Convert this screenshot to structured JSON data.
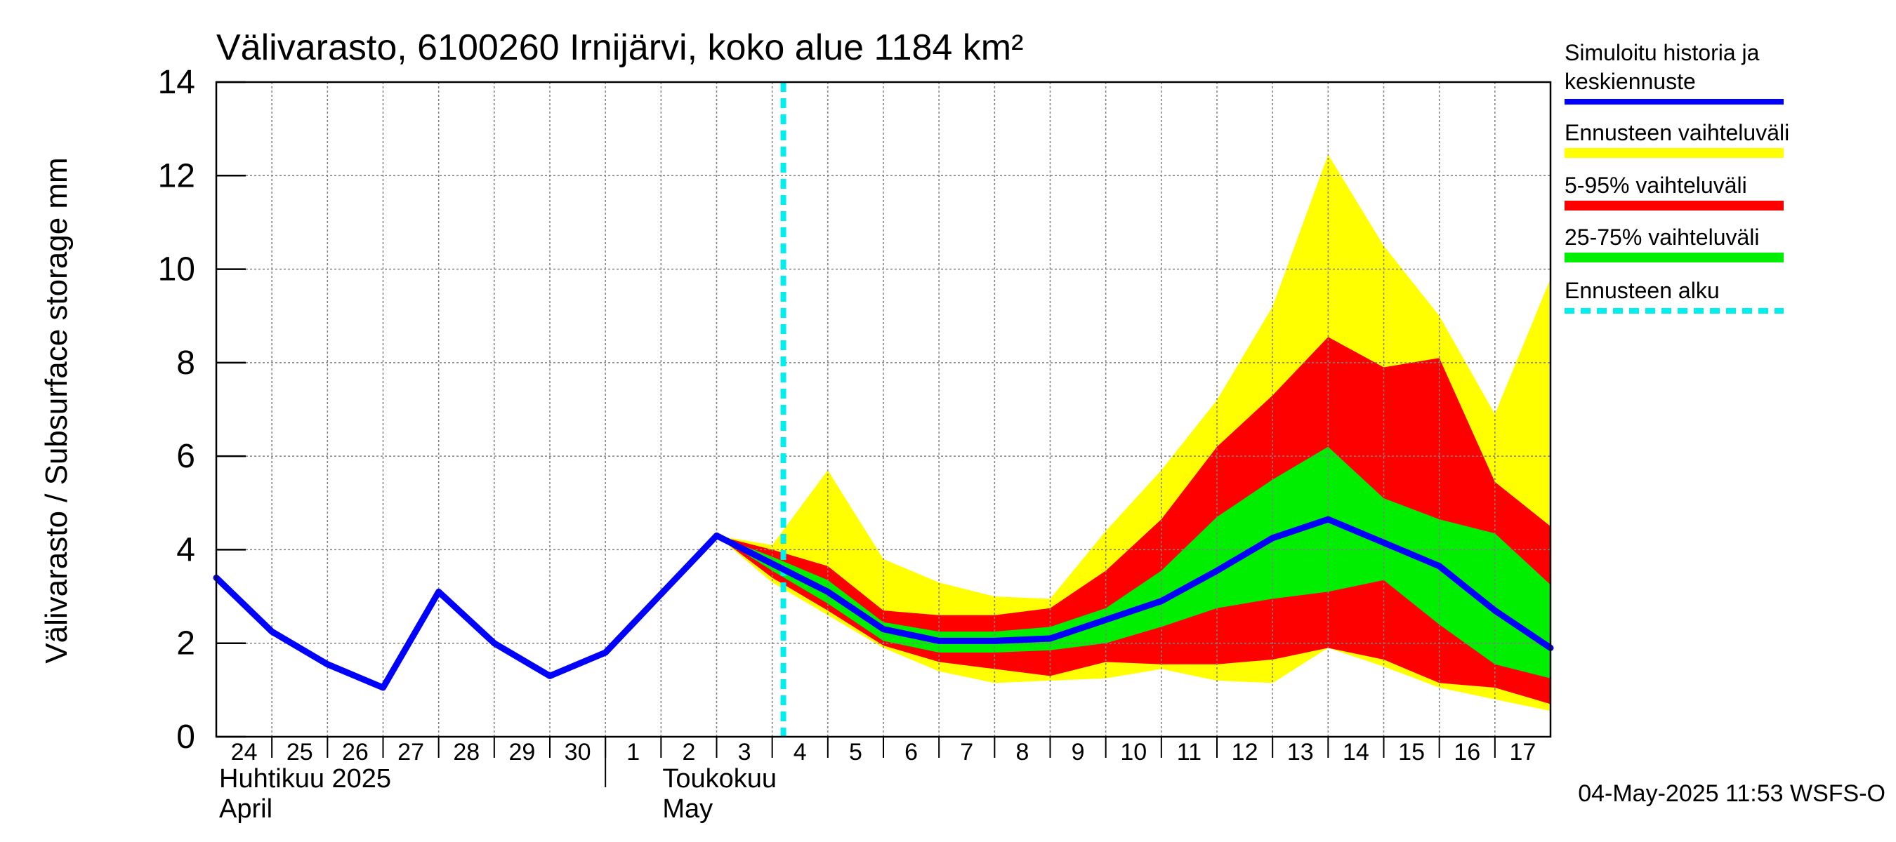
{
  "chart_data": {
    "type": "area",
    "title": "Välivarasto, 6100260 Irnijärvi, koko alue 1184 km²",
    "ylabel": "Välivarasto / Subsurface storage  mm",
    "ylim": [
      0,
      14
    ],
    "yticks": [
      0,
      2,
      4,
      6,
      8,
      10,
      12,
      14
    ],
    "x_days": [
      24,
      25,
      26,
      27,
      28,
      29,
      30,
      1,
      2,
      3,
      4,
      5,
      6,
      7,
      8,
      9,
      10,
      11,
      12,
      13,
      14,
      15,
      16,
      17
    ],
    "month_labels": [
      {
        "fi": "Huhtikuu  2025",
        "en": "April"
      },
      {
        "fi": "Toukokuu",
        "en": "May"
      }
    ],
    "forecast_start_index": 10,
    "history": [
      [
        0,
        3.4
      ],
      [
        1,
        2.25
      ],
      [
        2,
        1.55
      ],
      [
        3,
        1.05
      ],
      [
        4,
        3.1
      ],
      [
        5,
        2.0
      ],
      [
        6,
        1.3
      ],
      [
        7,
        1.8
      ],
      [
        8,
        3.05
      ],
      [
        9,
        4.3
      ]
    ],
    "bands": {
      "full_range": {
        "upper": [
          [
            9,
            4.3
          ],
          [
            10,
            4.1
          ],
          [
            11,
            5.7
          ],
          [
            12,
            3.8
          ],
          [
            13,
            3.3
          ],
          [
            14,
            3.0
          ],
          [
            15,
            2.95
          ],
          [
            16,
            4.4
          ],
          [
            17,
            5.7
          ],
          [
            18,
            7.2
          ],
          [
            19,
            9.2
          ],
          [
            20,
            12.45
          ],
          [
            21,
            10.5
          ],
          [
            22,
            9.0
          ],
          [
            23,
            6.9
          ],
          [
            24,
            9.8
          ]
        ],
        "lower": [
          [
            9,
            4.3
          ],
          [
            10,
            3.3
          ],
          [
            11,
            2.6
          ],
          [
            12,
            1.9
          ],
          [
            13,
            1.4
          ],
          [
            14,
            1.15
          ],
          [
            15,
            1.2
          ],
          [
            16,
            1.25
          ],
          [
            17,
            1.45
          ],
          [
            18,
            1.2
          ],
          [
            19,
            1.15
          ],
          [
            20,
            1.9
          ],
          [
            21,
            1.5
          ],
          [
            22,
            1.05
          ],
          [
            23,
            0.8
          ],
          [
            24,
            0.55
          ]
        ]
      },
      "p5_95": {
        "upper": [
          [
            9,
            4.3
          ],
          [
            10,
            4.0
          ],
          [
            11,
            3.65
          ],
          [
            12,
            2.7
          ],
          [
            13,
            2.6
          ],
          [
            14,
            2.6
          ],
          [
            15,
            2.75
          ],
          [
            16,
            3.55
          ],
          [
            17,
            4.65
          ],
          [
            18,
            6.2
          ],
          [
            19,
            7.3
          ],
          [
            20,
            8.55
          ],
          [
            21,
            7.9
          ],
          [
            22,
            8.1
          ],
          [
            23,
            5.45
          ],
          [
            24,
            4.5
          ]
        ],
        "lower": [
          [
            9,
            4.3
          ],
          [
            10,
            3.4
          ],
          [
            11,
            2.7
          ],
          [
            12,
            1.95
          ],
          [
            13,
            1.6
          ],
          [
            14,
            1.45
          ],
          [
            15,
            1.3
          ],
          [
            16,
            1.6
          ],
          [
            17,
            1.55
          ],
          [
            18,
            1.55
          ],
          [
            19,
            1.65
          ],
          [
            20,
            1.9
          ],
          [
            21,
            1.65
          ],
          [
            22,
            1.15
          ],
          [
            23,
            1.05
          ],
          [
            24,
            0.7
          ]
        ]
      },
      "p25_75": {
        "upper": [
          [
            9,
            4.3
          ],
          [
            10,
            3.85
          ],
          [
            11,
            3.35
          ],
          [
            12,
            2.45
          ],
          [
            13,
            2.25
          ],
          [
            14,
            2.25
          ],
          [
            15,
            2.35
          ],
          [
            16,
            2.75
          ],
          [
            17,
            3.55
          ],
          [
            18,
            4.7
          ],
          [
            19,
            5.5
          ],
          [
            20,
            6.2
          ],
          [
            21,
            5.1
          ],
          [
            22,
            4.65
          ],
          [
            23,
            4.35
          ],
          [
            24,
            3.25
          ]
        ],
        "lower": [
          [
            9,
            4.3
          ],
          [
            10,
            3.55
          ],
          [
            11,
            2.85
          ],
          [
            12,
            2.05
          ],
          [
            13,
            1.8
          ],
          [
            14,
            1.8
          ],
          [
            15,
            1.85
          ],
          [
            16,
            2.0
          ],
          [
            17,
            2.35
          ],
          [
            18,
            2.75
          ],
          [
            19,
            2.95
          ],
          [
            20,
            3.1
          ],
          [
            21,
            3.35
          ],
          [
            22,
            2.4
          ],
          [
            23,
            1.55
          ],
          [
            24,
            1.25
          ]
        ]
      }
    },
    "median_forecast": [
      [
        9,
        4.3
      ],
      [
        10,
        3.7
      ],
      [
        11,
        3.1
      ],
      [
        12,
        2.3
      ],
      [
        13,
        2.05
      ],
      [
        14,
        2.05
      ],
      [
        15,
        2.1
      ],
      [
        16,
        2.5
      ],
      [
        17,
        2.9
      ],
      [
        18,
        3.55
      ],
      [
        19,
        4.25
      ],
      [
        20,
        4.65
      ],
      [
        21,
        4.15
      ],
      [
        22,
        3.65
      ],
      [
        23,
        2.7
      ],
      [
        24,
        1.9
      ]
    ],
    "legend": [
      {
        "label": "Simuloitu historia ja keskiennuste",
        "line1": "Simuloitu historia ja",
        "line2": "keskiennuste",
        "color": "#0000ff",
        "style": "solid"
      },
      {
        "label": "Ennusteen vaihteluväli",
        "color": "#ffff00",
        "style": "solid"
      },
      {
        "label": "5-95% vaihteluväli",
        "color": "#ff0000",
        "style": "solid"
      },
      {
        "label": "25-75% vaihteluväli",
        "color": "#00ee00",
        "style": "solid"
      },
      {
        "label": "Ennusteen alku",
        "color": "#00eeee",
        "style": "dashed"
      }
    ],
    "colors": {
      "history": "#0000ff",
      "full_range": "#ffff00",
      "p5_95": "#ff0000",
      "p25_75": "#00ee00",
      "forecast_start": "#00eeee",
      "grid": "#808080"
    },
    "footer": "04-May-2025 11:53 WSFS-O"
  }
}
